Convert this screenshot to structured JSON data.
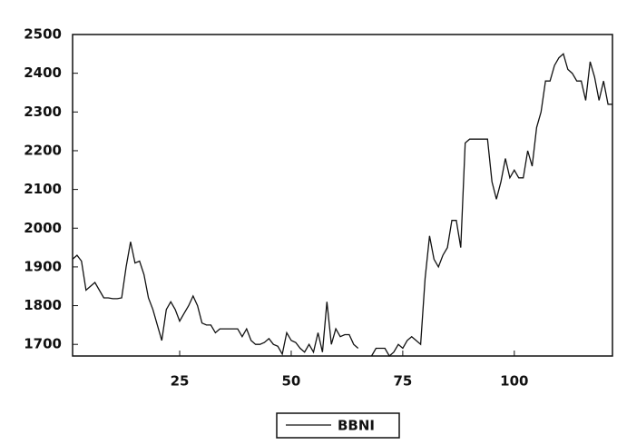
{
  "chart_data": {
    "type": "line",
    "x": [
      1,
      2,
      3,
      4,
      5,
      6,
      7,
      8,
      9,
      10,
      11,
      12,
      13,
      14,
      15,
      16,
      17,
      18,
      19,
      20,
      21,
      22,
      23,
      24,
      25,
      26,
      27,
      28,
      29,
      30,
      31,
      32,
      33,
      34,
      35,
      36,
      37,
      38,
      39,
      40,
      41,
      42,
      43,
      44,
      45,
      46,
      47,
      48,
      49,
      50,
      51,
      52,
      53,
      54,
      55,
      56,
      57,
      58,
      59,
      60,
      61,
      62,
      63,
      64,
      65,
      66,
      67,
      68,
      69,
      70,
      71,
      72,
      73,
      74,
      75,
      76,
      77,
      78,
      79,
      80,
      81,
      82,
      83,
      84,
      85,
      86,
      87,
      88,
      89,
      90,
      91,
      92,
      93,
      94,
      95,
      96,
      97,
      98,
      99,
      100,
      101,
      102,
      103,
      104,
      105,
      106,
      107,
      108,
      109,
      110,
      111,
      112,
      113,
      114,
      115,
      116,
      117,
      118,
      119,
      120,
      121,
      122
    ],
    "series": [
      {
        "name": "BBNI",
        "color": "#111111",
        "values": [
          1920,
          1930,
          1915,
          1840,
          1850,
          1860,
          1840,
          1820,
          1820,
          1818,
          1818,
          1820,
          1900,
          1965,
          1910,
          1915,
          1880,
          1820,
          1790,
          1750,
          1710,
          1790,
          1810,
          1790,
          1760,
          1780,
          1800,
          1825,
          1800,
          1755,
          1750,
          1750,
          1730,
          1740,
          1740,
          1740,
          1740,
          1740,
          1720,
          1740,
          1710,
          1700,
          1700,
          1705,
          1715,
          1700,
          1695,
          1675,
          1730,
          1710,
          1705,
          1690,
          1680,
          1700,
          1680,
          1730,
          1680,
          1810,
          1700,
          1740,
          1720,
          1725,
          1725,
          1700,
          1690,
          null,
          null,
          1670,
          1690,
          1690,
          1690,
          1670,
          1680,
          1700,
          1690,
          1710,
          1720,
          1710,
          1700,
          1870,
          1980,
          1920,
          1900,
          1930,
          1950,
          2020,
          2020,
          1950,
          2220,
          2230,
          2230,
          2230,
          2230,
          2230,
          2120,
          2075,
          2120,
          2180,
          2130,
          2150,
          2130,
          2130,
          2200,
          2160,
          2260,
          2300,
          2380,
          2380,
          2420,
          2440,
          2450,
          2410,
          2400,
          2380,
          2380,
          2330,
          2430,
          2390,
          2330,
          2380,
          2320,
          2320
        ]
      }
    ],
    "xlim": [
      1,
      122
    ],
    "xticks": [
      25,
      50,
      75,
      100
    ],
    "ylim": [
      1670,
      2500
    ],
    "yticks": [
      1700,
      1800,
      1900,
      2000,
      2100,
      2200,
      2300,
      2400,
      2500
    ],
    "legend": "bottom"
  }
}
